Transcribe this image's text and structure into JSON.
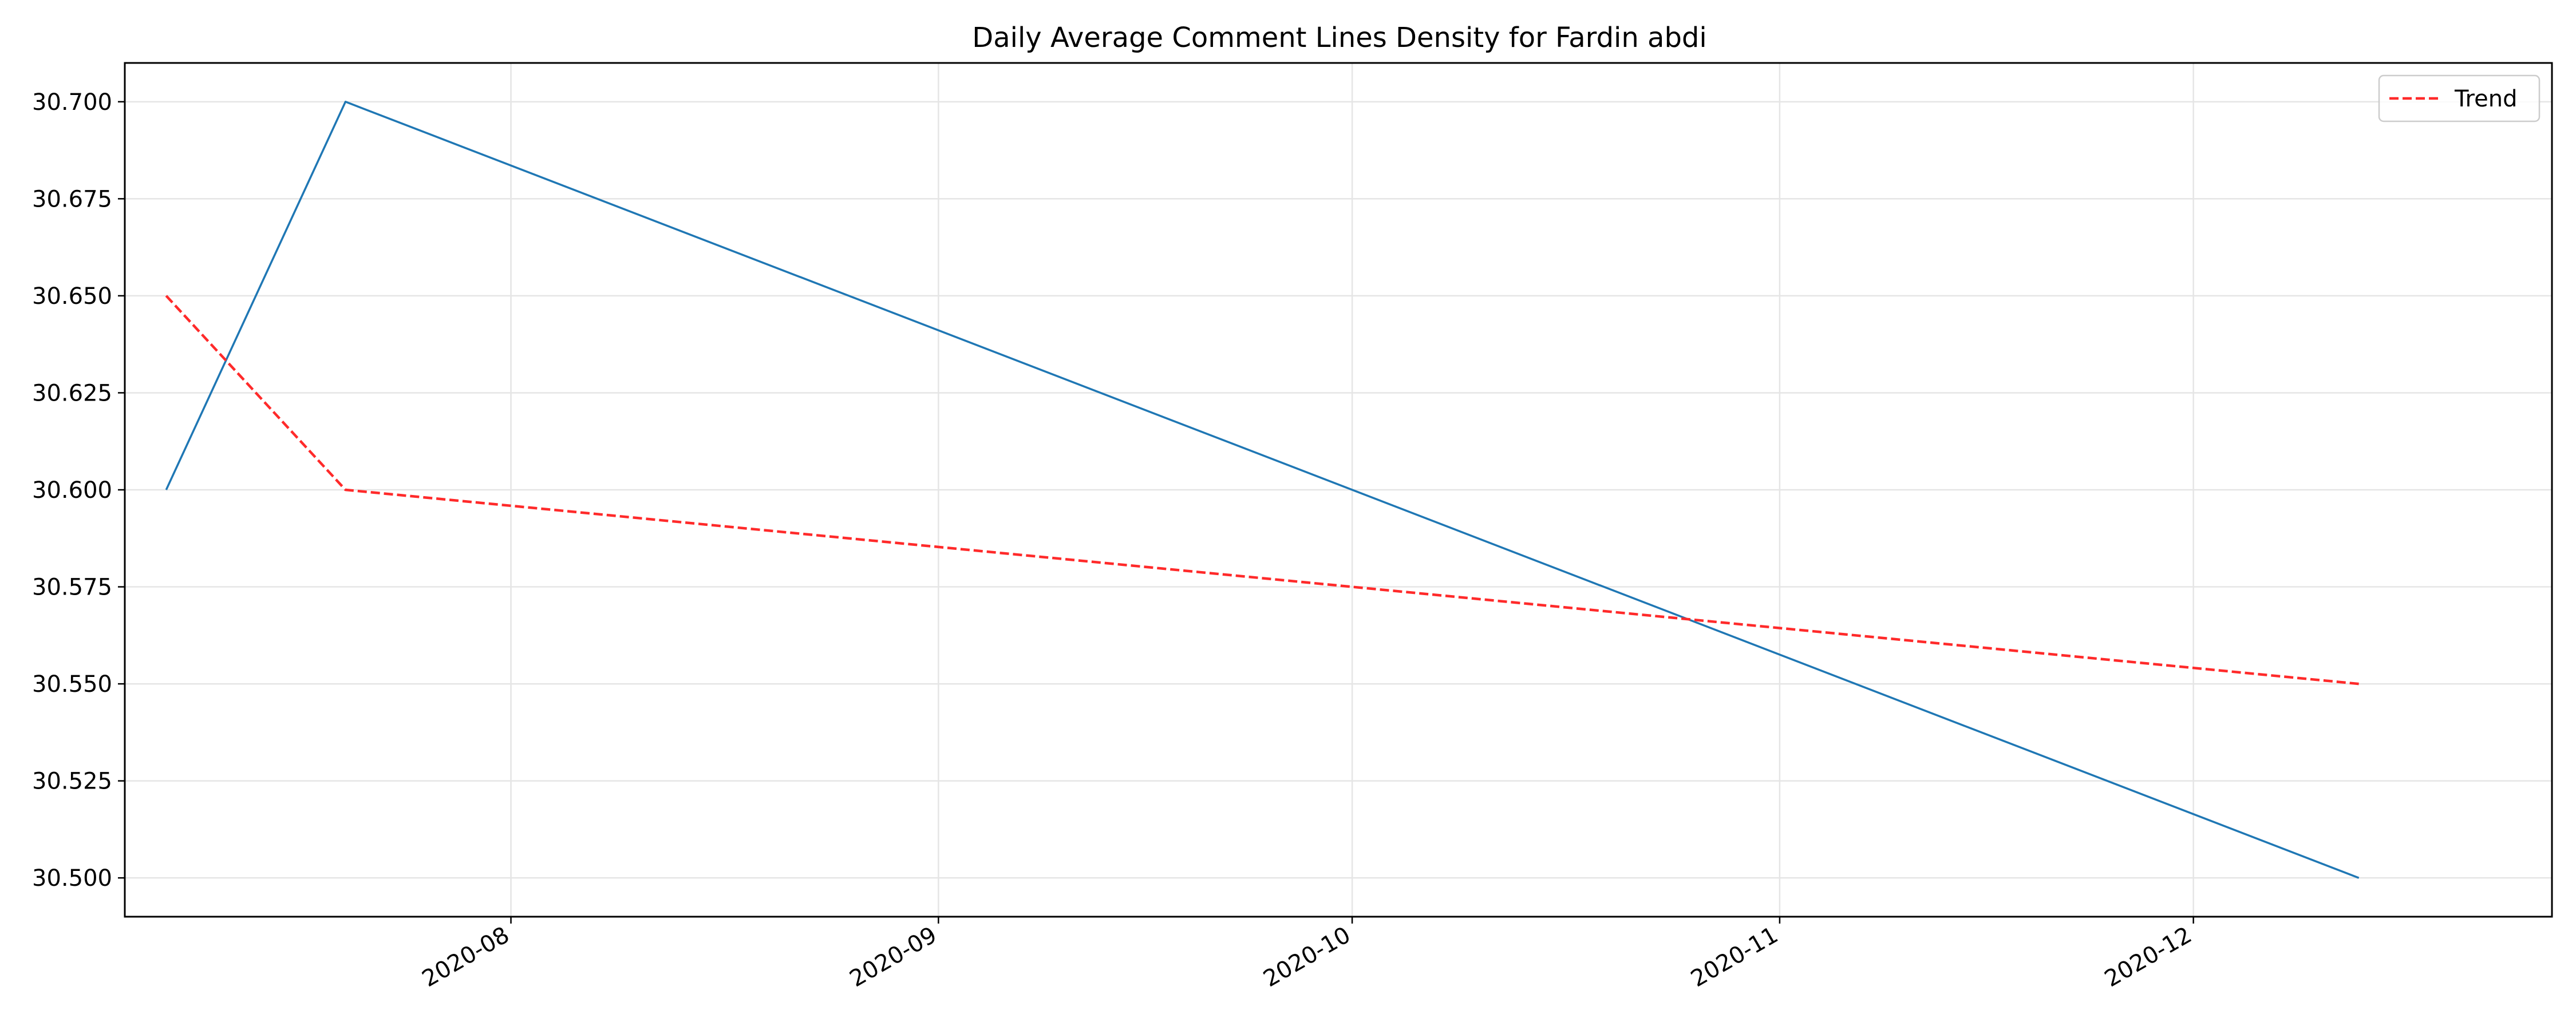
{
  "chart_data": {
    "type": "line",
    "title": "Daily Average Comment Lines Density for Fardin abdi",
    "xlabel": "",
    "ylabel": "",
    "x_type": "date",
    "xlim": [
      "2020-07-04",
      "2020-12-27"
    ],
    "ylim": [
      30.49,
      30.71
    ],
    "x_ticks": [
      "2020-08-01",
      "2020-09-01",
      "2020-10-01",
      "2020-11-01",
      "2020-12-01"
    ],
    "x_tick_labels": [
      "2020-08",
      "2020-09",
      "2020-10",
      "2020-11",
      "2020-12"
    ],
    "y_ticks": [
      30.5,
      30.525,
      30.55,
      30.575,
      30.6,
      30.625,
      30.65,
      30.675,
      30.7
    ],
    "y_tick_labels": [
      "30.500",
      "30.525",
      "30.550",
      "30.575",
      "30.600",
      "30.625",
      "30.650",
      "30.675",
      "30.700"
    ],
    "grid": true,
    "legend_position": "top-right",
    "series": [
      {
        "color": "#1f77b4",
        "style": "solid",
        "x": [
          "2020-07-07",
          "2020-07-20",
          "2020-12-13"
        ],
        "y": [
          30.6,
          30.7,
          30.5
        ]
      },
      {
        "name": "Trend",
        "color": "#ff2a2a",
        "style": "dashed",
        "x": [
          "2020-07-07",
          "2020-07-20",
          "2020-12-13"
        ],
        "y": [
          30.65,
          30.6,
          30.55
        ]
      }
    ]
  }
}
